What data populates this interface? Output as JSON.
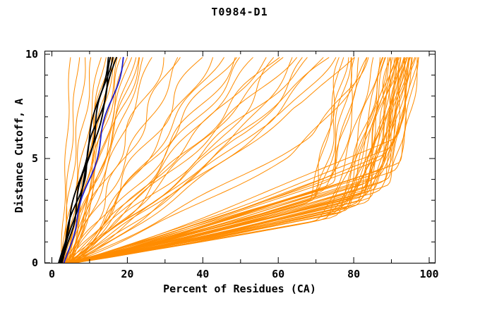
{
  "window": {
    "background": "#ffffff"
  },
  "chart_data": {
    "type": "line",
    "title": "T0984-D1",
    "xlabel": "Percent of Residues (CA)",
    "ylabel": "Distance Cutoff, A",
    "xlim": [
      0,
      100
    ],
    "ylim": [
      0,
      10
    ],
    "x_major_ticks": [
      0,
      20,
      40,
      60,
      80,
      100
    ],
    "x_minor_step": 10,
    "y_major_ticks": [
      0,
      5,
      10
    ],
    "y_minor_step": 1,
    "grid": false,
    "legend": "none",
    "frame_color": "#000000",
    "colors": {
      "orange": "#ff8c00",
      "black": "#000000",
      "blue": "#2020cc"
    },
    "curve_format": [
      "pct_at_cutoff0",
      "pct_at_knee",
      "knee_cutoff_A",
      "pct_at_cutoff10",
      "wiggle_amp_pct"
    ],
    "orange_curves": [
      [
        2.8,
        79,
        2.5,
        90,
        0.8
      ],
      [
        3.0,
        81,
        2.7,
        91,
        0.6
      ],
      [
        3.2,
        83,
        2.9,
        92,
        0.9
      ],
      [
        3.4,
        85,
        3.1,
        93,
        0.5
      ],
      [
        3.6,
        87,
        3.4,
        94,
        0.7
      ],
      [
        3.8,
        89,
        3.7,
        95,
        0.4
      ],
      [
        4.0,
        90,
        4.0,
        96,
        0.8
      ],
      [
        4.2,
        91,
        4.4,
        97,
        0.5
      ],
      [
        4.4,
        92,
        4.8,
        97.5,
        0.6
      ],
      [
        4.6,
        88,
        3.9,
        95.5,
        0.9
      ],
      [
        4.8,
        86,
        3.5,
        94.5,
        0.6
      ],
      [
        5.0,
        84,
        3.2,
        93.5,
        0.8
      ],
      [
        5.2,
        82,
        3.0,
        92.5,
        0.5
      ],
      [
        5.4,
        80,
        2.8,
        91.5,
        0.7
      ],
      [
        5.6,
        78,
        2.6,
        90.5,
        0.9
      ],
      [
        5.8,
        76,
        2.4,
        89.5,
        0.6
      ],
      [
        6.0,
        74,
        2.3,
        88.5,
        0.8
      ],
      [
        6.2,
        85,
        3.6,
        94,
        0.5
      ],
      [
        6.4,
        87,
        4.1,
        95,
        0.7
      ],
      [
        6.6,
        89,
        4.6,
        96,
        0.4
      ],
      [
        2.6,
        77,
        2.4,
        89,
        0.7
      ],
      [
        2.9,
        75,
        2.2,
        88,
        0.5
      ],
      [
        3.1,
        73,
        2.1,
        87,
        0.8
      ],
      [
        3.3,
        71,
        2.0,
        86,
        0.6
      ],
      [
        3.5,
        82,
        3.3,
        90,
        1.0
      ],
      [
        3.7,
        84,
        3.8,
        91,
        0.6
      ],
      [
        3.9,
        86,
        4.3,
        92,
        0.8
      ],
      [
        4.1,
        88,
        5.0,
        93,
        0.5
      ],
      [
        4.3,
        90,
        5.5,
        94,
        0.7
      ],
      [
        4.5,
        80,
        3.0,
        92,
        0.9
      ],
      [
        4.7,
        78,
        2.7,
        90,
        0.5
      ],
      [
        4.9,
        76,
        2.5,
        88.5,
        0.8
      ],
      [
        5.1,
        83,
        3.4,
        93,
        0.6
      ],
      [
        5.3,
        85,
        3.9,
        94.5,
        0.8
      ],
      [
        5.5,
        87,
        4.5,
        95.5,
        0.5
      ],
      [
        5.7,
        89,
        5.2,
        96.5,
        0.7
      ],
      [
        5.9,
        91,
        6.0,
        97,
        0.4
      ],
      [
        6.1,
        79,
        2.9,
        91,
        0.9
      ],
      [
        6.3,
        81,
        3.2,
        92.5,
        0.6
      ],
      [
        6.5,
        83,
        3.6,
        93.8,
        0.8
      ],
      [
        3.0,
        70,
        3.0,
        78,
        0.9
      ],
      [
        3.5,
        72,
        3.4,
        80,
        0.7
      ],
      [
        4.0,
        74,
        3.8,
        81,
        0.9
      ],
      [
        4.5,
        68,
        2.9,
        77,
        0.6
      ],
      [
        5.0,
        71,
        3.3,
        79,
        0.8
      ],
      [
        5.5,
        73,
        3.9,
        82,
        0.6
      ],
      [
        6.0,
        69,
        3.1,
        76.5,
        0.9
      ],
      [
        3.8,
        75,
        4.2,
        83,
        0.7
      ],
      [
        3.0,
        30,
        10,
        30,
        1.5
      ],
      [
        3.5,
        35,
        10,
        35,
        1.2
      ],
      [
        4.0,
        40,
        10,
        40,
        1.8
      ],
      [
        4.5,
        45,
        10,
        45,
        1.3
      ],
      [
        5.0,
        50,
        10,
        50,
        1.6
      ],
      [
        5.5,
        55,
        10,
        55,
        1.2
      ],
      [
        6.0,
        60,
        10,
        60,
        1.7
      ],
      [
        3.2,
        65,
        10,
        65,
        1.3
      ],
      [
        3.8,
        70,
        10,
        70,
        1.6
      ],
      [
        4.2,
        75,
        10,
        75,
        1.2
      ],
      [
        4.8,
        33,
        10,
        33,
        1.5
      ],
      [
        5.2,
        43,
        10,
        43,
        1.2
      ],
      [
        5.8,
        52,
        10,
        52,
        1.6
      ],
      [
        6.2,
        62,
        10,
        62,
        1.2
      ],
      [
        3.4,
        48,
        10,
        48,
        1.7
      ],
      [
        4.4,
        58,
        10,
        58,
        1.3
      ],
      [
        4.0,
        50,
        6.0,
        68,
        1.2
      ],
      [
        4.6,
        55,
        6.5,
        72,
        1.0
      ],
      [
        5.0,
        60,
        7.0,
        75,
        1.2
      ],
      [
        5.4,
        45,
        5.5,
        65,
        1.0
      ],
      [
        3.6,
        40,
        5.0,
        60,
        1.3
      ],
      [
        5.8,
        65,
        7.5,
        80,
        1.0
      ],
      [
        4.2,
        68,
        6.0,
        84,
        1.2
      ],
      [
        4.8,
        62,
        5.0,
        85,
        1.0
      ],
      [
        2.4,
        5,
        10,
        5,
        0.3
      ],
      [
        2.5,
        7,
        10,
        7,
        0.4
      ],
      [
        2.5,
        9,
        10,
        9,
        0.5
      ],
      [
        2.7,
        11,
        10,
        11,
        0.6
      ],
      [
        2.9,
        13,
        10,
        13,
        0.5
      ],
      [
        3.1,
        15,
        10,
        15,
        0.7
      ],
      [
        3.3,
        17,
        10,
        17,
        0.5
      ],
      [
        3.5,
        19,
        10,
        19,
        0.8
      ],
      [
        3.7,
        21,
        10,
        21,
        0.5
      ],
      [
        3.9,
        23,
        10,
        23,
        0.7
      ],
      [
        4.1,
        25,
        10,
        25,
        0.6
      ],
      [
        4.3,
        27,
        10,
        27,
        0.8
      ],
      [
        4.5,
        14,
        10,
        14,
        0.5
      ],
      [
        4.7,
        16,
        10,
        16,
        0.6
      ],
      [
        4.9,
        18,
        10,
        18,
        0.5
      ],
      [
        5.1,
        20,
        10,
        20,
        0.7
      ],
      [
        5.3,
        22,
        10,
        22,
        0.6
      ],
      [
        2.6,
        24,
        10,
        24,
        0.9
      ]
    ],
    "black_curves": [
      [
        1.8,
        15.2,
        10,
        15.2,
        0.5
      ],
      [
        2.1,
        16.4,
        10,
        16.4,
        0.7
      ],
      [
        2.4,
        17.2,
        10,
        17.2,
        0.4
      ],
      [
        2.7,
        15.8,
        10,
        15.8,
        0.6
      ]
    ],
    "blue_curves": [
      [
        3.2,
        19.2,
        10,
        19.2,
        0.6
      ]
    ]
  },
  "axes": {
    "x_tick_labels": [
      "0",
      "20",
      "40",
      "60",
      "80",
      "100"
    ],
    "y_tick_labels": [
      "0",
      "5",
      "10"
    ]
  }
}
